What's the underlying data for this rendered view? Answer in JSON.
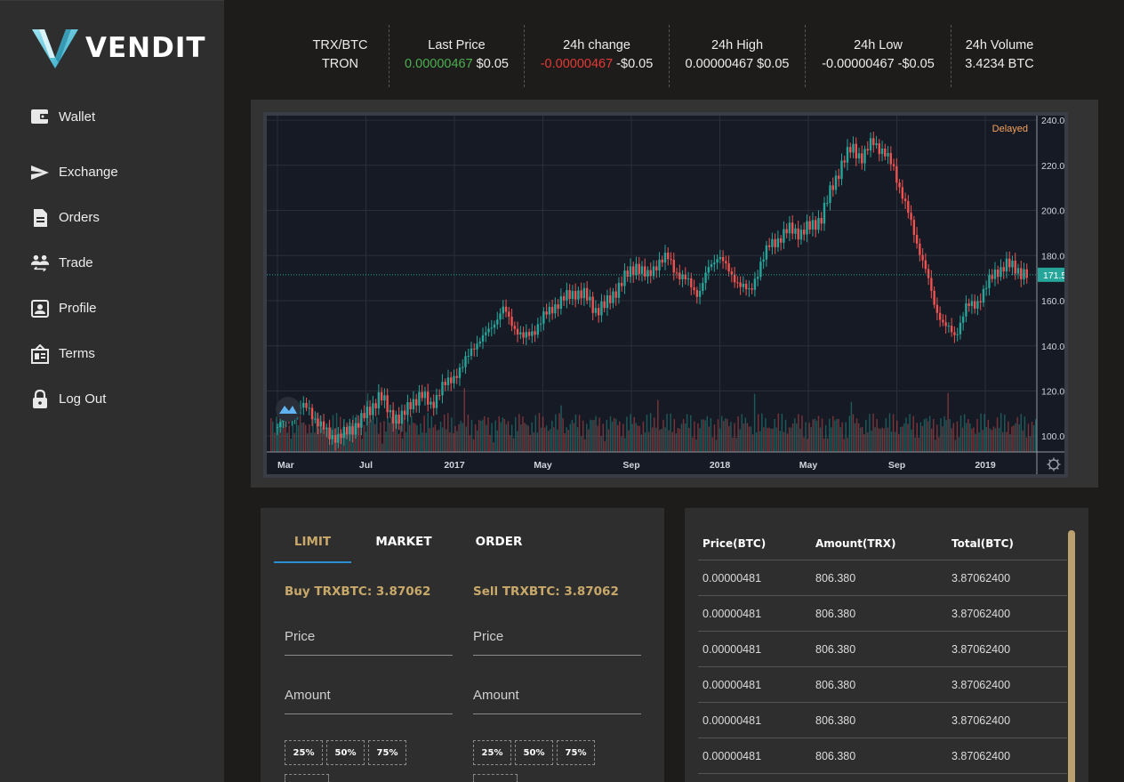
{
  "brand": {
    "name": "VENDIT"
  },
  "sidebar": {
    "items": [
      {
        "label": "Wallet",
        "icon": "wallet-icon"
      },
      {
        "label": "Exchange",
        "icon": "send-icon"
      },
      {
        "label": "Orders",
        "icon": "document-icon"
      },
      {
        "label": "Trade",
        "icon": "people-transfer-icon"
      },
      {
        "label": "Profile",
        "icon": "profile-icon"
      },
      {
        "label": "Terms",
        "icon": "terms-icon"
      },
      {
        "label": "Log Out",
        "icon": "lock-icon"
      }
    ]
  },
  "ticker": {
    "pair": {
      "line1": "TRX/BTC",
      "line2": "TRON"
    },
    "last_price": {
      "label": "Last Price",
      "value": "0.00000467",
      "usd": "$0.05"
    },
    "change_24h": {
      "label": "24h change",
      "value": "-0.00000467",
      "usd": "-$0.05"
    },
    "high_24h": {
      "label": "24h High",
      "value": "0.00000467 $0.05"
    },
    "low_24h": {
      "label": "24h Low",
      "value": "-0.00000467 -$0.05"
    },
    "volume_24h": {
      "label": "24h Volume",
      "value": "3.4234 BTC"
    }
  },
  "chart_data": {
    "type": "line",
    "status": "Delayed",
    "current_price": "171.50",
    "y_ticks": [
      "240.00",
      "220.00",
      "200.00",
      "180.00",
      "160.00",
      "140.00",
      "120.00",
      "100.00"
    ],
    "x_ticks": [
      "Mar",
      "Jul",
      "2017",
      "May",
      "Sep",
      "2018",
      "May",
      "Sep",
      "2019"
    ],
    "ylim": [
      93,
      242
    ],
    "series": [
      {
        "values": [
          104,
          108,
          112,
          113,
          105,
          101,
          99,
          103,
          106,
          112,
          118,
          110,
          107,
          115,
          118,
          114,
          121,
          126,
          130,
          140,
          143,
          150,
          156,
          149,
          143,
          147,
          153,
          158,
          161,
          164,
          162,
          156,
          158,
          165,
          171,
          176,
          170,
          177,
          179,
          172,
          168,
          163,
          174,
          181,
          172,
          168,
          163,
          176,
          185,
          188,
          192,
          190,
          193,
          197,
          210,
          221,
          228,
          223,
          231,
          226,
          219,
          205,
          190,
          176,
          158,
          149,
          144,
          157,
          158,
          166,
          173,
          176,
          174,
          171.5
        ],
        "color": "#26a69a"
      }
    ],
    "colors": {
      "up": "#26a69a",
      "down": "#ef5350",
      "price_line": "#26a69a"
    }
  },
  "form": {
    "tabs": [
      "LIMIT",
      "MARKET",
      "ORDER"
    ],
    "active_tab": "LIMIT",
    "buy": {
      "title": "Buy TRXBTC: 3.87062",
      "price_placeholder": "Price",
      "amount_placeholder": "Amount"
    },
    "sell": {
      "title": "Sell TRXBTC: 3.87062",
      "price_placeholder": "Price",
      "amount_placeholder": "Amount"
    },
    "percents": [
      "25%",
      "50%",
      "75%"
    ]
  },
  "order_book": {
    "headers": [
      "Price(BTC)",
      "Amount(TRX)",
      "Total(BTC)"
    ],
    "rows": [
      [
        "0.00000481",
        "806.380",
        "3.87062400"
      ],
      [
        "0.00000481",
        "806.380",
        "3.87062400"
      ],
      [
        "0.00000481",
        "806.380",
        "3.87062400"
      ],
      [
        "0.00000481",
        "806.380",
        "3.87062400"
      ],
      [
        "0.00000481",
        "806.380",
        "3.87062400"
      ],
      [
        "0.00000481",
        "806.380",
        "3.87062400"
      ]
    ]
  }
}
